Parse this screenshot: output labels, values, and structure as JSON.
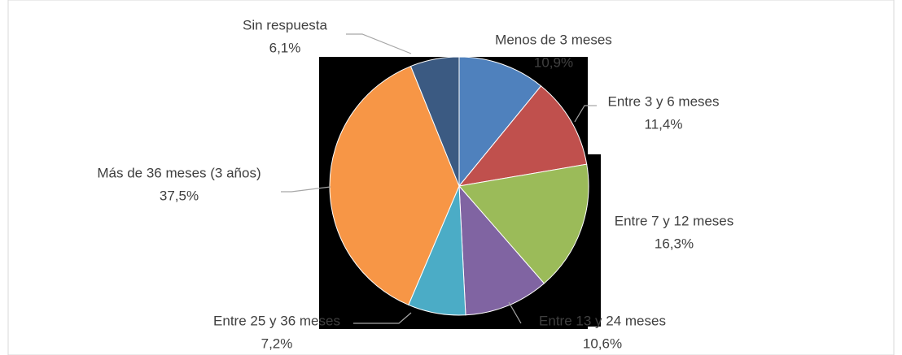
{
  "chart_data": {
    "type": "pie",
    "categories": [
      "Menos de 3 meses",
      "Entre 3 y 6 meses",
      "Entre 7 y 12 meses",
      "Entre 13 y 24 meses",
      "Entre 25 y 36 meses",
      "Más de 36 meses (3 años)",
      "Sin respuesta"
    ],
    "values": [
      10.9,
      11.4,
      16.3,
      10.6,
      7.2,
      37.5,
      6.1
    ],
    "value_labels": [
      "10,9%",
      "11,4%",
      "16,3%",
      "10,6%",
      "7,2%",
      "37,5%",
      "6,1%"
    ],
    "colors": [
      "#4f81bd",
      "#c0504d",
      "#9bbb59",
      "#8064a2",
      "#4bacc6",
      "#f79646",
      "#3b5a82"
    ]
  }
}
